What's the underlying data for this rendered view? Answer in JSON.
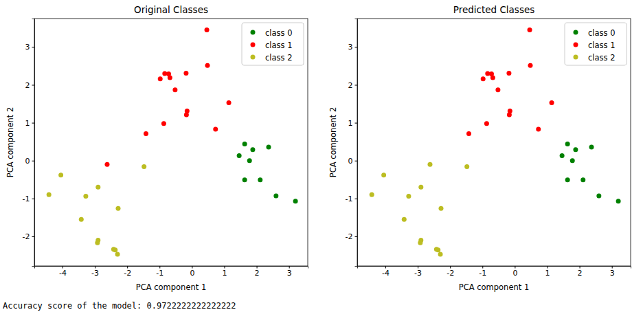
{
  "chart_data": [
    {
      "type": "scatter",
      "title": "Original Classes",
      "x_label": "PCA component 1",
      "y_label": "PCA component 2",
      "xlim": [
        -4.87,
        3.58
      ],
      "ylim": [
        -2.78,
        3.75
      ],
      "xticks": [
        -4,
        -3,
        -2,
        -1,
        0,
        1,
        2,
        3
      ],
      "yticks": [
        -2,
        -1,
        0,
        1,
        2,
        3
      ],
      "grid": false,
      "legend": "upper right",
      "marker": "circle",
      "series": [
        {
          "name": "class 0",
          "color": "green",
          "x": [
            1.63,
            1.46,
            1.88,
            1.78,
            2.37,
            1.63,
            2.11,
            2.6,
            3.2
          ],
          "values": [
            0.44,
            0.13,
            0.29,
            0.0,
            0.36,
            -0.51,
            -0.51,
            -0.93,
            -1.07
          ]
        },
        {
          "name": "class 1",
          "color": "red",
          "x": [
            0.46,
            0.48,
            -0.84,
            -0.72,
            -0.68,
            -0.98,
            -0.18,
            -0.52,
            -0.15,
            -0.17,
            1.14,
            -0.87,
            0.73,
            -1.42,
            -2.62
          ],
          "values": [
            3.45,
            2.51,
            2.3,
            2.29,
            2.19,
            2.16,
            2.31,
            1.87,
            1.31,
            1.21,
            1.53,
            0.98,
            0.83,
            0.71,
            -0.1
          ]
        },
        {
          "name": "class 2",
          "color": "#bcbd22",
          "x": [
            -4.05,
            -4.42,
            -3.28,
            -2.9,
            -1.48,
            -3.42,
            -2.28,
            -2.9,
            -2.92,
            -2.42,
            -2.37,
            -2.3
          ],
          "values": [
            -0.38,
            -0.9,
            -0.94,
            -0.7,
            -0.16,
            -1.55,
            -1.26,
            -2.1,
            -2.17,
            -2.34,
            -2.36,
            -2.47
          ]
        }
      ]
    },
    {
      "type": "scatter",
      "title": "Predicted Classes",
      "x_label": "PCA component 1",
      "y_label": "PCA component 2",
      "xlim": [
        -4.87,
        3.58
      ],
      "ylim": [
        -2.78,
        3.75
      ],
      "xticks": [
        -4,
        -3,
        -2,
        -1,
        0,
        1,
        2,
        3
      ],
      "yticks": [
        -2,
        -1,
        0,
        1,
        2,
        3
      ],
      "grid": false,
      "legend": "upper right",
      "marker": "circle",
      "series": [
        {
          "name": "class 0",
          "color": "green",
          "x": [
            1.63,
            1.46,
            1.88,
            1.78,
            2.37,
            1.63,
            2.11,
            2.6,
            3.2
          ],
          "values": [
            0.44,
            0.13,
            0.29,
            0.0,
            0.36,
            -0.51,
            -0.51,
            -0.93,
            -1.07
          ]
        },
        {
          "name": "class 1",
          "color": "red",
          "x": [
            0.46,
            0.48,
            -0.84,
            -0.72,
            -0.68,
            -0.98,
            -0.18,
            -0.52,
            -0.15,
            -0.17,
            1.14,
            -0.87,
            0.73,
            -1.42
          ],
          "values": [
            3.45,
            2.51,
            2.3,
            2.29,
            2.19,
            2.16,
            2.31,
            1.87,
            1.31,
            1.21,
            1.53,
            0.98,
            0.83,
            0.71
          ]
        },
        {
          "name": "class 2",
          "color": "#bcbd22",
          "x": [
            -4.05,
            -4.42,
            -3.28,
            -2.9,
            -1.48,
            -3.42,
            -2.28,
            -2.9,
            -2.92,
            -2.42,
            -2.37,
            -2.3,
            -2.62
          ],
          "values": [
            -0.38,
            -0.9,
            -0.94,
            -0.7,
            -0.16,
            -1.55,
            -1.26,
            -2.1,
            -2.17,
            -2.34,
            -2.36,
            -2.47,
            -0.1
          ]
        }
      ]
    }
  ],
  "footer_text": "Accuracy score of the model: 0.9722222222222222"
}
